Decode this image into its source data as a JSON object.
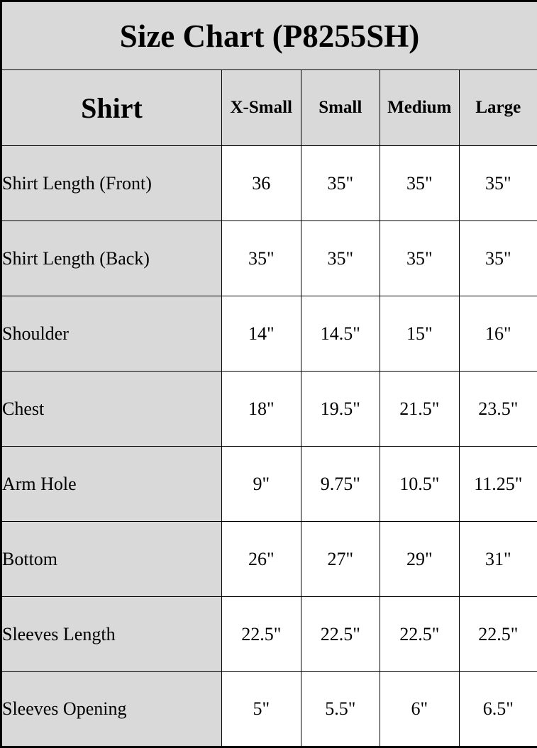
{
  "colors": {
    "header_bg": "#d9d9d9",
    "cell_bg": "#ffffff",
    "border": "#000000",
    "text": "#000000"
  },
  "chart_data": {
    "type": "table",
    "title": "Size Chart (P8255SH)",
    "corner_label": "Shirt",
    "size_columns": [
      "X-Small",
      "Small",
      "Medium",
      "Large"
    ],
    "rows": [
      {
        "label": "Shirt Length (Front)",
        "values": [
          "36",
          "35\"",
          "35\"",
          "35\""
        ]
      },
      {
        "label": "Shirt Length (Back)",
        "values": [
          "35\"",
          "35\"",
          "35\"",
          "35\""
        ]
      },
      {
        "label": "Shoulder",
        "values": [
          "14\"",
          "14.5\"",
          "15\"",
          "16\""
        ]
      },
      {
        "label": "Chest",
        "values": [
          "18\"",
          "19.5\"",
          "21.5\"",
          "23.5\""
        ]
      },
      {
        "label": "Arm Hole",
        "values": [
          "9\"",
          "9.75\"",
          "10.5\"",
          "11.25\""
        ]
      },
      {
        "label": "Bottom",
        "values": [
          "26\"",
          "27\"",
          "29\"",
          "31\""
        ]
      },
      {
        "label": "Sleeves Length",
        "values": [
          "22.5\"",
          "22.5\"",
          "22.5\"",
          "22.5\""
        ]
      },
      {
        "label": "Sleeves Opening",
        "values": [
          "5\"",
          "5.5\"",
          "6\"",
          "6.5\""
        ]
      }
    ]
  }
}
